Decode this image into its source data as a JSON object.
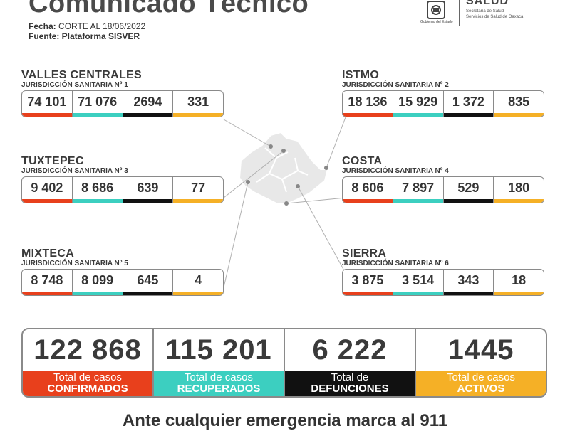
{
  "header": {
    "title": "Comunicado Técnico",
    "date_label": "Fecha:",
    "date_value": "CORTE AL 18/06/2022",
    "source": "Fuente: Plataforma SISVER"
  },
  "logo": {
    "gob": "Gobierno del Estado",
    "salud": "SALUD",
    "sub1": "Secretaría de Salud",
    "sub2": "Servicios de Salud de Oaxaca"
  },
  "regions": {
    "valles": {
      "name": "VALLES CENTRALES",
      "jur": "JURISDICCIÓN SANITARIA Nº 1",
      "confirmados": "74 101",
      "recuperados": "71 076",
      "defunciones": "2694",
      "activos": "331"
    },
    "istmo": {
      "name": "ISTMO",
      "jur": "JURISDICCIÓN SANITARIA Nº 2",
      "confirmados": "18 136",
      "recuperados": "15 929",
      "defunciones": "1 372",
      "activos": "835"
    },
    "tuxtepec": {
      "name": "TUXTEPEC",
      "jur": "JURISDICCIÓN SANITARIA Nº 3",
      "confirmados": "9 402",
      "recuperados": "8 686",
      "defunciones": "639",
      "activos": "77"
    },
    "costa": {
      "name": "COSTA",
      "jur": "JURISDICCIÓN SANITARIA Nº 4",
      "confirmados": "8 606",
      "recuperados": "7 897",
      "defunciones": "529",
      "activos": "180"
    },
    "mixteca": {
      "name": "MIXTECA",
      "jur": "JURISDICCIÓN SANITARIA Nº 5",
      "confirmados": "8 748",
      "recuperados": "8 099",
      "defunciones": "645",
      "activos": "4"
    },
    "sierra": {
      "name": "SIERRA",
      "jur": "JURISDICCIÓN SANITARIA Nº 6",
      "confirmados": "3 875",
      "recuperados": "3 514",
      "defunciones": "343",
      "activos": "18"
    }
  },
  "totals": {
    "confirmados": {
      "value": "122 868",
      "line1": "Total de casos",
      "line2": "CONFIRMADOS"
    },
    "recuperados": {
      "value": "115 201",
      "line1": "Total de casos",
      "line2": "RECUPERADOS"
    },
    "defunciones": {
      "value": "6 222",
      "line1": "Total de",
      "line2": "DEFUNCIONES"
    },
    "activos": {
      "value": "1445",
      "line1": "Total de casos",
      "line2": "ACTIVOS"
    }
  },
  "footer": "Ante cualquier emergencia marca al 911",
  "colors": {
    "confirmados": "#e8401c",
    "recuperados": "#3ccfc0",
    "defunciones": "#111111",
    "activos": "#f5b026"
  }
}
